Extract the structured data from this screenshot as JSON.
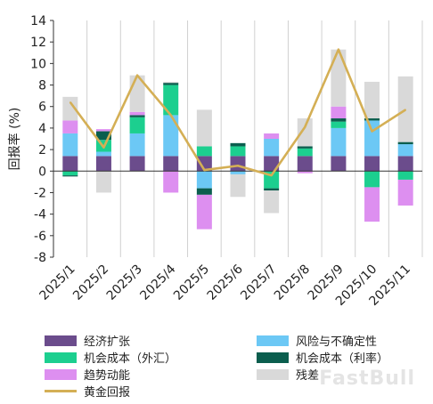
{
  "chart_data": {
    "type": "bar",
    "stacked": true,
    "categories": [
      "2025/1",
      "2025/2",
      "2025/3",
      "2025/4",
      "2025/5",
      "2025/6",
      "2025/7",
      "2025/8",
      "2025/9",
      "2025/10",
      "2025/11"
    ],
    "ylabel": "回报率 (%)",
    "ylim": [
      -8,
      14
    ],
    "yticks": [
      -8,
      -6,
      -4,
      -2,
      0,
      2,
      4,
      6,
      8,
      10,
      12,
      14
    ],
    "grid": "vertical",
    "legend_position": "bottom",
    "series": [
      {
        "name": "经济扩张",
        "color": "#6b4c8c",
        "values": [
          1.4,
          1.4,
          1.4,
          1.4,
          1.4,
          1.4,
          1.4,
          1.4,
          1.4,
          1.4,
          1.4
        ]
      },
      {
        "name": "风险与不确定性",
        "color": "#6cc8f5",
        "values": [
          2.1,
          0.4,
          2.1,
          3.8,
          -1.6,
          -0.3,
          1.6,
          0.0,
          2.6,
          3.3,
          1.1
        ]
      },
      {
        "name": "机会成本（外汇）",
        "color": "#1ccf8f",
        "values": [
          -0.4,
          1.1,
          1.5,
          2.8,
          0.9,
          0.9,
          -1.6,
          0.7,
          0.6,
          -1.5,
          -0.8
        ]
      },
      {
        "name": "机会成本（利率）",
        "color": "#0b5e4e",
        "values": [
          -0.1,
          0.8,
          0.2,
          0.2,
          -0.6,
          0.3,
          -0.2,
          0.2,
          0.3,
          0.2,
          0.2
        ]
      },
      {
        "name": "趋势动能",
        "color": "#dd8ff0",
        "values": [
          1.2,
          0.2,
          0.3,
          -2.0,
          -3.2,
          0.0,
          0.5,
          -0.2,
          1.1,
          -3.2,
          -2.4
        ]
      },
      {
        "name": "残差",
        "color": "#d9d9d9",
        "values": [
          2.2,
          -2.0,
          3.4,
          0.1,
          3.4,
          -2.1,
          -2.1,
          2.6,
          5.3,
          3.4,
          6.1
        ]
      }
    ],
    "line": {
      "name": "黄金回报",
      "color": "#d4af55",
      "values": [
        6.4,
        2.2,
        8.9,
        5.2,
        0.1,
        0.5,
        -0.4,
        4.1,
        11.3,
        3.7,
        5.7
      ]
    },
    "legend_order": [
      {
        "name": "经济扩张",
        "color": "#6b4c8c",
        "kind": "bar"
      },
      {
        "name": "风险与不确定性",
        "color": "#6cc8f5",
        "kind": "bar"
      },
      {
        "name": "机会成本（外汇）",
        "color": "#1ccf8f",
        "kind": "bar"
      },
      {
        "name": "机会成本（利率）",
        "color": "#0b5e4e",
        "kind": "bar"
      },
      {
        "name": "趋势动能",
        "color": "#dd8ff0",
        "kind": "bar"
      },
      {
        "name": "残差",
        "color": "#d9d9d9",
        "kind": "bar"
      },
      {
        "name": "黄金回报",
        "color": "#d4af55",
        "kind": "line"
      }
    ]
  },
  "watermark": "FastBull"
}
